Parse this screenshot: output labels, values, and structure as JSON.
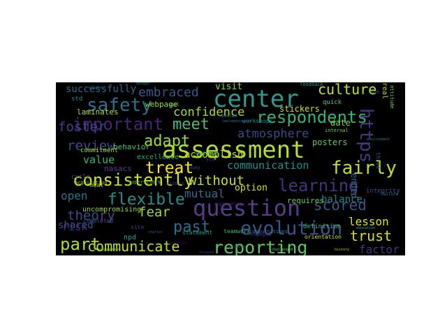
{
  "words": [
    {
      "text": "assessment",
      "color": "#b5de2b",
      "rotate": false
    },
    {
      "text": "question",
      "color": "#5b3b8c",
      "rotate": false
    },
    {
      "text": "center",
      "color": "#2a9d8f",
      "rotate": false
    },
    {
      "text": "respondents",
      "color": "#2fb47c",
      "rotate": false
    },
    {
      "text": "learning",
      "color": "#46327e",
      "rotate": false
    },
    {
      "text": "evolution",
      "color": "#3b528b",
      "rotate": false
    },
    {
      "text": "important",
      "color": "#482475",
      "rotate": false
    },
    {
      "text": "consistently",
      "color": "#d2e21b",
      "rotate": false
    },
    {
      "text": "safety",
      "color": "#2c728e",
      "rotate": false
    },
    {
      "text": "fairly",
      "color": "#c2df23",
      "rotate": false
    },
    {
      "text": "reporting",
      "color": "#5ec962",
      "rotate": false
    },
    {
      "text": "flexible",
      "color": "#21908d",
      "rotate": false
    },
    {
      "text": "treat",
      "color": "#fde725",
      "rotate": false
    },
    {
      "text": "adapt",
      "color": "#a0da39",
      "rotate": false
    },
    {
      "text": "meet",
      "color": "#4ac16d",
      "rotate": false
    },
    {
      "text": "past",
      "color": "#2d708e",
      "rotate": false
    },
    {
      "text": "part",
      "color": "#addc30",
      "rotate": false
    },
    {
      "text": "communicate",
      "color": "#bddf26",
      "rotate": false
    },
    {
      "text": "culture",
      "color": "#c8e020",
      "rotate": false
    },
    {
      "text": "review",
      "color": "#3e4a89",
      "rotate": false
    },
    {
      "text": "theory",
      "color": "#3f4889",
      "rotate": false
    },
    {
      "text": "scored",
      "color": "#3a538b",
      "rotate": false
    },
    {
      "text": "trust",
      "color": "#d5e21a",
      "rotate": false
    },
    {
      "text": "fear",
      "color": "#9bd93c",
      "rotate": false
    },
    {
      "text": "foster",
      "color": "#404387",
      "rotate": false
    },
    {
      "text": "https",
      "color": "#443a83",
      "rotate": true
    },
    {
      "text": "embraced",
      "color": "#38588c",
      "rotate": false
    },
    {
      "text": "atmosphere",
      "color": "#3e4989",
      "rotate": false
    },
    {
      "text": "without",
      "color": "#c5e021",
      "rotate": false
    },
    {
      "text": "confidence",
      "color": "#addc30",
      "rotate": false
    },
    {
      "text": "communication",
      "color": "#20928c",
      "rotate": false
    },
    {
      "text": "mutual",
      "color": "#2e6e8e",
      "rotate": false
    },
    {
      "text": "lesson",
      "color": "#dde318",
      "rotate": false
    },
    {
      "text": "factor",
      "color": "#46337e",
      "rotate": false
    },
    {
      "text": "successfully",
      "color": "#31688e",
      "rotate": false
    },
    {
      "text": "accomplish",
      "color": "#c2df23",
      "rotate": false
    },
    {
      "text": "value",
      "color": "#35b779",
      "rotate": false
    },
    {
      "text": "balance",
      "color": "#25858e",
      "rotate": false
    },
    {
      "text": "open",
      "color": "#2c738e",
      "rotate": false
    },
    {
      "text": "risk",
      "color": "#472d7b",
      "rotate": false
    },
    {
      "text": "shared",
      "color": "#3b518b",
      "rotate": false
    },
    {
      "text": "visit",
      "color": "#8ed645",
      "rotate": false
    },
    {
      "text": "option",
      "color": "#d8e219",
      "rotate": false
    },
    {
      "text": "stickers",
      "color": "#d0e11c",
      "rotate": false
    },
    {
      "text": "posters",
      "color": "#5cc863",
      "rotate": false
    },
    {
      "text": "date",
      "color": "#86d549",
      "rotate": false
    },
    {
      "text": "behavior",
      "color": "#4ac16d",
      "rotate": false
    },
    {
      "text": "laminates",
      "color": "#b2dd2d",
      "rotate": false
    },
    {
      "text": "webpage",
      "color": "#93d741",
      "rotate": false
    },
    {
      "text": "requires",
      "color": "#67cc5c",
      "rotate": false
    },
    {
      "text": "nasacs",
      "color": "#5b3b8c",
      "rotate": false
    },
    {
      "text": "uncompromising",
      "color": "#9bd93c",
      "rotate": false
    },
    {
      "text": "integrity",
      "color": "#3b528b",
      "rotate": false
    },
    {
      "text": "excellence",
      "color": "#29af7f",
      "rotate": false
    },
    {
      "text": "commitment",
      "color": "#a2da37",
      "rotate": false
    },
    {
      "text": "npd",
      "color": "#22a785",
      "rotate": false
    },
    {
      "text": "statement",
      "color": "#1f9a8a",
      "rotate": false
    },
    {
      "text": "teamwork",
      "color": "#35b779",
      "rotate": false
    },
    {
      "text": "definition",
      "color": "#3dbc74",
      "rotate": false
    },
    {
      "text": "orientation",
      "color": "#d0e11c",
      "rotate": false
    },
    {
      "text": "ended",
      "color": "#2d708e",
      "rotate": true
    },
    {
      "text": "workshops",
      "color": "#21918c",
      "rotate": false
    },
    {
      "text": "cycle",
      "color": "#3e4989",
      "rotate": false
    },
    {
      "text": "std",
      "color": "#25858e",
      "rotate": false
    },
    {
      "text": "site",
      "color": "#433e85",
      "rotate": false
    },
    {
      "text": "completed",
      "color": "#3a538b",
      "rotate": false
    },
    {
      "text": "acquisition",
      "color": "#7ad151",
      "rotate": false
    },
    {
      "text": "access",
      "color": "#3e4989",
      "rotate": false
    },
    {
      "text": "consultations",
      "color": "#2a788e",
      "rotate": false
    },
    {
      "text": "engaged",
      "color": "#46337e",
      "rotate": false
    },
    {
      "text": "supervisors",
      "color": "#4ac16d",
      "rotate": false
    },
    {
      "text": "internal",
      "color": "#7ad151",
      "rotate": false
    },
    {
      "text": "quick",
      "color": "#5ec962",
      "rotate": false
    },
    {
      "text": "hpr",
      "color": "#2c728e",
      "rotate": false
    },
    {
      "text": "year",
      "color": "#46327e",
      "rotate": false
    },
    {
      "text": "feedback",
      "color": "#1f9e89",
      "rotate": false
    },
    {
      "text": "real",
      "color": "#bddf26",
      "rotate": true
    },
    {
      "text": "three",
      "color": "#365c8d",
      "rotate": true
    },
    {
      "text": "meat",
      "color": "#b5de2b",
      "rotate": false
    },
    {
      "text": "engagement",
      "color": "#7ad151",
      "rotate": false
    },
    {
      "text": "guidance",
      "color": "#3a538b",
      "rotate": false
    },
    {
      "text": "history",
      "color": "#b5de2b",
      "rotate": false
    },
    {
      "text": "includes",
      "color": "#440154",
      "rotate": false
    },
    {
      "text": "challenged",
      "color": "#75d054",
      "rotate": false
    },
    {
      "text": "focused",
      "color": "#46327e",
      "rotate": false
    },
    {
      "text": "engineering",
      "color": "#46327e",
      "rotate": false
    },
    {
      "text": "employees",
      "color": "#29af7f",
      "rotate": false
    },
    {
      "text": "education",
      "color": "#22a785",
      "rotate": false
    },
    {
      "text": "failure",
      "color": "#2c728e",
      "rotate": false
    },
    {
      "text": "easy",
      "color": "#3e4989",
      "rotate": false
    },
    {
      "text": "well",
      "color": "#65cb5e",
      "rotate": false
    },
    {
      "text": "modeled",
      "color": "#2a788e",
      "rotate": false
    },
    {
      "text": "implementation",
      "color": "#31688e",
      "rotate": false
    },
    {
      "text": "enjoyed",
      "color": "#5b3b8c",
      "rotate": false
    },
    {
      "text": "manager",
      "color": "#2a788e",
      "rotate": false
    },
    {
      "text": "attitude",
      "color": "#6ece58",
      "rotate": true
    },
    {
      "text": "environment",
      "color": "#26828e",
      "rotate": false
    },
    {
      "text": "charter",
      "color": "#38588c",
      "rotate": false
    },
    {
      "text": "science",
      "color": "#355f8d",
      "rotate": false
    }
  ]
}
